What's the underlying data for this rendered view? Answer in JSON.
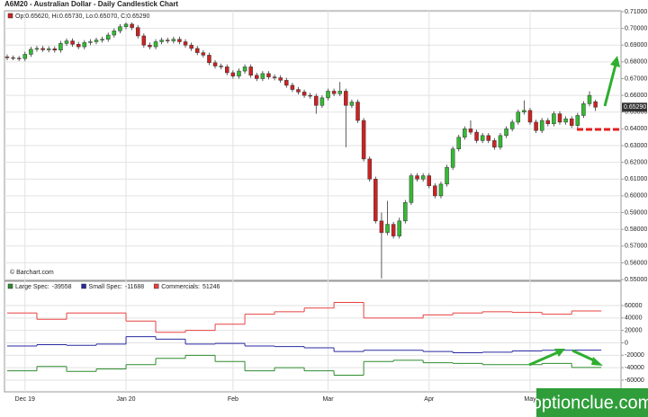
{
  "chart_data": [
    {
      "type": "candlestick",
      "title": "A6M20 - Australian Dollar - Daily Candlestick Chart",
      "ohlc_label": "Op:0.65620, Hi:0.65730, Lo:0.65070, C:0.65290",
      "copyright": "© Barchart.com",
      "last_price": {
        "value": 0.6529,
        "label": "0.65290"
      },
      "up_color": "#33bb33",
      "down_color": "#cc2222",
      "xlim": [
        -0.45,
        103.3
      ],
      "xticks": [
        {
          "value": 3,
          "label": "Dec 19"
        },
        {
          "value": 20,
          "label": "Jan 20"
        },
        {
          "value": 38,
          "label": "Feb"
        },
        {
          "value": 54,
          "label": "Mar"
        },
        {
          "value": 71,
          "label": "Apr"
        },
        {
          "value": 88,
          "label": "May"
        }
      ],
      "ylim": [
        0.5495,
        0.7105
      ],
      "yticks": [
        {
          "value": 0.71,
          "label": "0.71000"
        },
        {
          "value": 0.7,
          "label": "0.70000"
        },
        {
          "value": 0.69,
          "label": "0.69000"
        },
        {
          "value": 0.68,
          "label": "0.68000"
        },
        {
          "value": 0.67,
          "label": "0.67000"
        },
        {
          "value": 0.66,
          "label": "0.66000"
        },
        {
          "value": 0.65,
          "label": "0.65000"
        },
        {
          "value": 0.64,
          "label": "0.64000"
        },
        {
          "value": 0.63,
          "label": "0.63000"
        },
        {
          "value": 0.62,
          "label": "0.62000"
        },
        {
          "value": 0.61,
          "label": "0.61000"
        },
        {
          "value": 0.6,
          "label": "0.60000"
        },
        {
          "value": 0.59,
          "label": "0.59000"
        },
        {
          "value": 0.58,
          "label": "0.58000"
        },
        {
          "value": 0.57,
          "label": "0.57000"
        },
        {
          "value": 0.56,
          "label": "0.56000"
        },
        {
          "value": 0.55,
          "label": "0.55000"
        }
      ],
      "grid": true,
      "candles": [
        [
          0.683,
          0.6845,
          0.681,
          0.6825
        ],
        [
          0.6825,
          0.6838,
          0.681,
          0.6822
        ],
        [
          0.6822,
          0.6835,
          0.6805,
          0.682
        ],
        [
          0.682,
          0.686,
          0.6805,
          0.6845
        ],
        [
          0.6845,
          0.689,
          0.683,
          0.6875
        ],
        [
          0.6875,
          0.6895,
          0.686,
          0.688
        ],
        [
          0.688,
          0.6895,
          0.686,
          0.6872
        ],
        [
          0.6872,
          0.6893,
          0.6857,
          0.6878
        ],
        [
          0.6878,
          0.6893,
          0.6855,
          0.687
        ],
        [
          0.687,
          0.6925,
          0.6855,
          0.691
        ],
        [
          0.691,
          0.694,
          0.6895,
          0.6925
        ],
        [
          0.6925,
          0.694,
          0.689,
          0.6905
        ],
        [
          0.6905,
          0.692,
          0.6875,
          0.689
        ],
        [
          0.689,
          0.693,
          0.6875,
          0.6915
        ],
        [
          0.6915,
          0.6935,
          0.69,
          0.692
        ],
        [
          0.692,
          0.6945,
          0.6905,
          0.693
        ],
        [
          0.693,
          0.695,
          0.6915,
          0.6935
        ],
        [
          0.6935,
          0.6975,
          0.692,
          0.696
        ],
        [
          0.696,
          0.7,
          0.6945,
          0.6985
        ],
        [
          0.6985,
          0.7025,
          0.697,
          0.701
        ],
        [
          0.701,
          0.7035,
          0.6995,
          0.7025
        ],
        [
          0.7025,
          0.7035,
          0.699,
          0.7005
        ],
        [
          0.7005,
          0.702,
          0.694,
          0.6955
        ],
        [
          0.6955,
          0.697,
          0.6885,
          0.69
        ],
        [
          0.69,
          0.6915,
          0.6875,
          0.689
        ],
        [
          0.689,
          0.6935,
          0.6875,
          0.692
        ],
        [
          0.692,
          0.6945,
          0.6905,
          0.693
        ],
        [
          0.693,
          0.6945,
          0.691,
          0.6925
        ],
        [
          0.6925,
          0.695,
          0.691,
          0.6935
        ],
        [
          0.6935,
          0.695,
          0.6905,
          0.692
        ],
        [
          0.692,
          0.6935,
          0.6885,
          0.69
        ],
        [
          0.69,
          0.6915,
          0.6865,
          0.688
        ],
        [
          0.688,
          0.6895,
          0.684,
          0.6855
        ],
        [
          0.6855,
          0.687,
          0.6825,
          0.684
        ],
        [
          0.684,
          0.6855,
          0.678,
          0.6795
        ],
        [
          0.6795,
          0.681,
          0.676,
          0.6775
        ],
        [
          0.6775,
          0.679,
          0.6755,
          0.677
        ],
        [
          0.677,
          0.6785,
          0.672,
          0.6735
        ],
        [
          0.6735,
          0.675,
          0.67,
          0.6715
        ],
        [
          0.6715,
          0.676,
          0.67,
          0.6745
        ],
        [
          0.6745,
          0.6785,
          0.673,
          0.677
        ],
        [
          0.677,
          0.6785,
          0.6705,
          0.672
        ],
        [
          0.672,
          0.6735,
          0.6685,
          0.67
        ],
        [
          0.67,
          0.6745,
          0.6685,
          0.673
        ],
        [
          0.673,
          0.6745,
          0.6695,
          0.671
        ],
        [
          0.671,
          0.6725,
          0.669,
          0.6705
        ],
        [
          0.6705,
          0.672,
          0.6675,
          0.669
        ],
        [
          0.669,
          0.6705,
          0.6645,
          0.666
        ],
        [
          0.666,
          0.6675,
          0.662,
          0.6635
        ],
        [
          0.6635,
          0.665,
          0.6605,
          0.662
        ],
        [
          0.662,
          0.6635,
          0.6585,
          0.66
        ],
        [
          0.66,
          0.6615,
          0.658,
          0.6595
        ],
        [
          0.6595,
          0.661,
          0.649,
          0.654
        ],
        [
          0.654,
          0.66,
          0.6525,
          0.6585
        ],
        [
          0.6585,
          0.664,
          0.657,
          0.6625
        ],
        [
          0.6625,
          0.664,
          0.6595,
          0.661
        ],
        [
          0.661,
          0.668,
          0.6595,
          0.6625
        ],
        [
          0.6625,
          0.664,
          0.629,
          0.654
        ],
        [
          0.654,
          0.6575,
          0.6525,
          0.656
        ],
        [
          0.656,
          0.6575,
          0.6435,
          0.645
        ],
        [
          0.645,
          0.6465,
          0.6205,
          0.622
        ],
        [
          0.622,
          0.6235,
          0.6085,
          0.61
        ],
        [
          0.61,
          0.6115,
          0.5835,
          0.585
        ],
        [
          0.585,
          0.59,
          0.5507,
          0.578
        ],
        [
          0.578,
          0.597,
          0.5765,
          0.583
        ],
        [
          0.583,
          0.5845,
          0.5745,
          0.576
        ],
        [
          0.576,
          0.587,
          0.5745,
          0.585
        ],
        [
          0.585,
          0.5975,
          0.5835,
          0.596
        ],
        [
          0.596,
          0.6135,
          0.5945,
          0.612
        ],
        [
          0.612,
          0.6135,
          0.6085,
          0.61
        ],
        [
          0.61,
          0.6135,
          0.6085,
          0.612
        ],
        [
          0.612,
          0.6135,
          0.6045,
          0.606
        ],
        [
          0.606,
          0.6075,
          0.5985,
          0.6
        ],
        [
          0.6,
          0.6085,
          0.5985,
          0.607
        ],
        [
          0.607,
          0.6185,
          0.6055,
          0.617
        ],
        [
          0.617,
          0.6295,
          0.6155,
          0.628
        ],
        [
          0.628,
          0.6365,
          0.6265,
          0.635
        ],
        [
          0.635,
          0.6415,
          0.6335,
          0.64
        ],
        [
          0.64,
          0.645,
          0.6365,
          0.638
        ],
        [
          0.638,
          0.6395,
          0.6315,
          0.633
        ],
        [
          0.633,
          0.6375,
          0.6315,
          0.636
        ],
        [
          0.636,
          0.6375,
          0.6315,
          0.633
        ],
        [
          0.633,
          0.6345,
          0.6275,
          0.629
        ],
        [
          0.629,
          0.6375,
          0.6275,
          0.636
        ],
        [
          0.636,
          0.6415,
          0.6345,
          0.64
        ],
        [
          0.64,
          0.6455,
          0.6385,
          0.644
        ],
        [
          0.644,
          0.6515,
          0.6425,
          0.65
        ],
        [
          0.65,
          0.657,
          0.6485,
          0.651
        ],
        [
          0.651,
          0.6525,
          0.6425,
          0.644
        ],
        [
          0.644,
          0.6455,
          0.6375,
          0.639
        ],
        [
          0.639,
          0.6465,
          0.6375,
          0.645
        ],
        [
          0.645,
          0.6465,
          0.6415,
          0.643
        ],
        [
          0.643,
          0.6505,
          0.6415,
          0.649
        ],
        [
          0.649,
          0.6505,
          0.6425,
          0.644
        ],
        [
          0.644,
          0.6475,
          0.6425,
          0.646
        ],
        [
          0.646,
          0.6475,
          0.6405,
          0.642
        ],
        [
          0.642,
          0.6495,
          0.6405,
          0.648
        ],
        [
          0.648,
          0.6565,
          0.6465,
          0.655
        ],
        [
          0.655,
          0.6625,
          0.6535,
          0.66
        ],
        [
          0.6562,
          0.6573,
          0.6507,
          0.6529
        ]
      ]
    },
    {
      "type": "step",
      "xlim": [
        -0.45,
        103.3
      ],
      "x": [
        0,
        5,
        10,
        15,
        20,
        25,
        30,
        35,
        40,
        45,
        50,
        55,
        60,
        65,
        70,
        75,
        80,
        85,
        90,
        95
      ],
      "ylim": [
        -78800,
        99000
      ],
      "yticks": [
        60000,
        40000,
        20000,
        0,
        -20000,
        -40000,
        -60000
      ],
      "grid": true,
      "series": [
        {
          "name": "Large Spec:",
          "color": "#2e8b2e",
          "values": [
            -45000,
            -38000,
            -46000,
            -42000,
            -35000,
            -25000,
            -20000,
            -30000,
            -45000,
            -40000,
            -45000,
            -52000,
            -30000,
            -28000,
            -32000,
            -33000,
            -35000,
            -35000,
            -33000,
            -39558
          ]
        },
        {
          "name": "Small Spec:",
          "color": "#2a2aa0",
          "values": [
            -5000,
            -3000,
            -4000,
            -2000,
            10000,
            6000,
            -2000,
            -1000,
            -5000,
            -6000,
            -8000,
            -14000,
            -12000,
            -12000,
            -14000,
            -16000,
            -15000,
            -13000,
            -12000,
            -11688
          ]
        },
        {
          "name": "Commercials:",
          "color": "#e84040",
          "values": [
            48000,
            38000,
            48000,
            48000,
            35000,
            17000,
            20000,
            30000,
            46000,
            50000,
            56000,
            65000,
            40000,
            40000,
            45000,
            48000,
            50000,
            49000,
            46000,
            51246
          ]
        }
      ]
    }
  ],
  "watermark": "optionclue.com"
}
